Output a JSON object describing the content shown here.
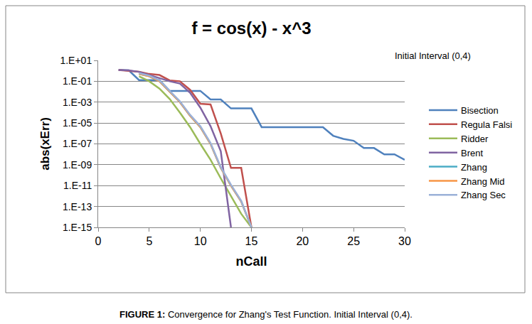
{
  "chart_data": {
    "type": "line",
    "title": "f = cos(x) - x^3",
    "annotation": "Initial Interval (0,4)",
    "caption": "FIGURE 1: Convergence for Zhang's Test Function. Initial Interval (0,4).",
    "x_label": "nCall",
    "y_label": "abs(xErr)",
    "log": "y",
    "grid": true,
    "legend": "right",
    "marker": "none",
    "xlim": [
      0,
      30
    ],
    "xticks": [
      0,
      5,
      10,
      15,
      20,
      25,
      30
    ],
    "ylim": [
      1e-15,
      10
    ],
    "yticks": [
      {
        "value": 10,
        "label": "1.E+01"
      },
      {
        "value": 0.1,
        "label": "1.E-01"
      },
      {
        "value": 0.001,
        "label": "1.E-03"
      },
      {
        "value": 1e-05,
        "label": "1.E-05"
      },
      {
        "value": 1e-07,
        "label": "1.E-07"
      },
      {
        "value": 1e-09,
        "label": "1.E-09"
      },
      {
        "value": 1e-11,
        "label": "1.E-11"
      },
      {
        "value": 1e-13,
        "label": "1.E-13"
      },
      {
        "value": 1e-15,
        "label": "1.E-15"
      }
    ],
    "series": [
      {
        "name": "Bisection",
        "color": "#4f81bd",
        "x": [
          2,
          3,
          4,
          5,
          6,
          7,
          8,
          9,
          10,
          11,
          12,
          13,
          14,
          15,
          16,
          17,
          18,
          19,
          20,
          21,
          22,
          23,
          24,
          25,
          26,
          27,
          28,
          29,
          30
        ],
        "values": [
          1.2,
          1.1,
          0.13,
          0.13,
          0.13,
          0.012,
          0.012,
          0.012,
          0.012,
          0.0018,
          0.0018,
          0.00025,
          0.00025,
          0.00025,
          4e-06,
          4e-06,
          4e-06,
          4e-06,
          4e-06,
          4e-06,
          4e-06,
          6e-07,
          3e-07,
          2e-07,
          4e-08,
          4e-08,
          1e-08,
          1e-08,
          3e-09
        ]
      },
      {
        "name": "Regula Falsi",
        "color": "#c0504d",
        "x": [
          2,
          3,
          4,
          5,
          6,
          7,
          8,
          9,
          10,
          11,
          12,
          13,
          14,
          15
        ],
        "values": [
          1.2,
          1.0,
          0.8,
          0.5,
          0.4,
          0.12,
          0.1,
          0.015,
          0.0007,
          0.0006,
          1e-06,
          5e-10,
          5e-10,
          1e-15
        ]
      },
      {
        "name": "Ridder",
        "color": "#9bbb59",
        "x": [
          4,
          5,
          6,
          7,
          8,
          9,
          10,
          11,
          12,
          13,
          14,
          15
        ],
        "values": [
          0.3,
          0.1,
          0.02,
          0.002,
          0.0001,
          4e-06,
          1e-07,
          3e-09,
          5e-11,
          1e-12,
          2e-14,
          1e-15
        ]
      },
      {
        "name": "Brent",
        "color": "#8064a2",
        "x": [
          2,
          3,
          4,
          5,
          6,
          7,
          8,
          9,
          10,
          11,
          12,
          13
        ],
        "values": [
          1.2,
          1.1,
          0.8,
          0.4,
          0.2,
          0.1,
          0.06,
          0.008,
          0.0003,
          5e-06,
          2e-08,
          1e-15
        ]
      },
      {
        "name": "Zhang",
        "color": "#4bacc6",
        "x": [
          4,
          5,
          6,
          7,
          8,
          9,
          10,
          11,
          12,
          13,
          14,
          15
        ],
        "values": [
          0.5,
          0.3,
          0.1,
          0.01,
          0.001,
          5e-05,
          4e-06,
          1e-07,
          5e-10,
          1e-11,
          3e-13,
          1e-15
        ]
      },
      {
        "name": "Zhang Mid",
        "color": "#f79646",
        "x": [
          4,
          5,
          6,
          7,
          8,
          9,
          10,
          11,
          12,
          13,
          14,
          15
        ],
        "values": [
          0.5,
          0.3,
          0.1,
          0.01,
          0.001,
          5e-05,
          4e-06,
          1e-07,
          5e-10,
          1e-11,
          3e-13,
          1e-15
        ]
      },
      {
        "name": "Zhang Sec",
        "color": "#9bb1d8",
        "x": [
          4,
          5,
          6,
          7,
          8,
          9,
          10,
          11,
          12,
          13,
          14,
          15
        ],
        "values": [
          0.6,
          0.35,
          0.12,
          0.012,
          0.0012,
          6e-05,
          5e-06,
          1.2e-07,
          6e-10,
          1.2e-11,
          3.5e-13,
          1e-15
        ]
      }
    ]
  }
}
